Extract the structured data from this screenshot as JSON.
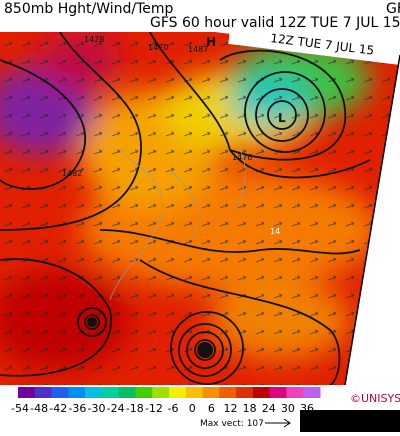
{
  "header": {
    "title": "850mb Hght/Wind/Temp",
    "subtitle": "GFS 60 hour valid 12Z TUE  7 JUL 15",
    "cut_label": "GF",
    "overlay_label": "12Z TUE  7 JUL 15"
  },
  "map": {
    "labels": [
      {
        "text": "H"
      },
      {
        "text": "1487"
      },
      {
        "text": "1470"
      },
      {
        "text": "L"
      },
      {
        "text": "1482"
      },
      {
        "text": "1476"
      },
      {
        "text": "14"
      },
      {
        "text": "1428"
      }
    ]
  },
  "colorbar": {
    "labels": [
      -54,
      -48,
      -42,
      -36,
      -30,
      -24,
      -18,
      -12,
      -6,
      0,
      6,
      12,
      18,
      24,
      30,
      36
    ]
  },
  "footer": {
    "credit": "©UNISYS",
    "max_vector": "Max vect: 107"
  }
}
